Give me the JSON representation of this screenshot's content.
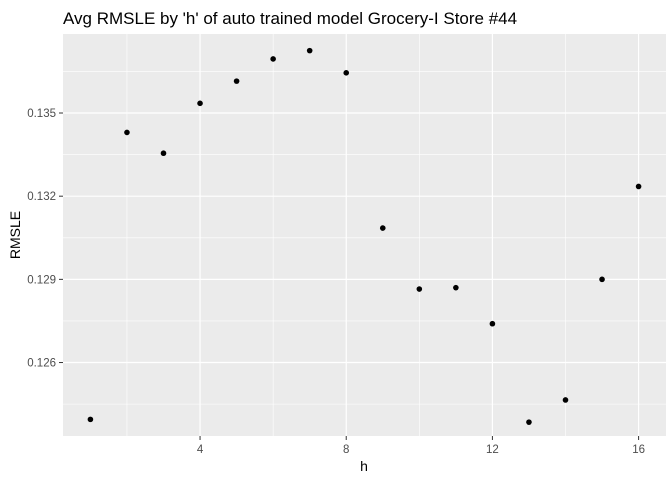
{
  "chart_data": {
    "type": "scatter",
    "title": "Avg RMSLE by 'h' of auto trained model Grocery-I Store #44",
    "xlabel": "h",
    "ylabel": "RMSLE",
    "x": [
      1,
      2,
      3,
      4,
      5,
      6,
      7,
      8,
      9,
      10,
      11,
      12,
      13,
      14,
      15,
      16
    ],
    "y": [
      0.12395,
      0.1343,
      0.13355,
      0.13535,
      0.13615,
      0.13695,
      0.13725,
      0.13645,
      0.13085,
      0.12865,
      0.1287,
      0.1274,
      0.12385,
      0.12465,
      0.129,
      0.13235
    ],
    "xlim": [
      0.25,
      16.75
    ],
    "ylim": [
      0.12335,
      0.13785
    ],
    "xticks": [
      4,
      8,
      12,
      16
    ],
    "xtick_labels": [
      "4",
      "8",
      "12",
      "16"
    ],
    "yticks": [
      0.126,
      0.129,
      0.132,
      0.135
    ],
    "ytick_labels": [
      "0.126",
      "0.129",
      "0.132",
      "0.135"
    ],
    "grid": true,
    "legend": "none",
    "colors": {
      "panel": "#ebebeb",
      "grid": "#ffffff",
      "point": "#000000"
    }
  }
}
